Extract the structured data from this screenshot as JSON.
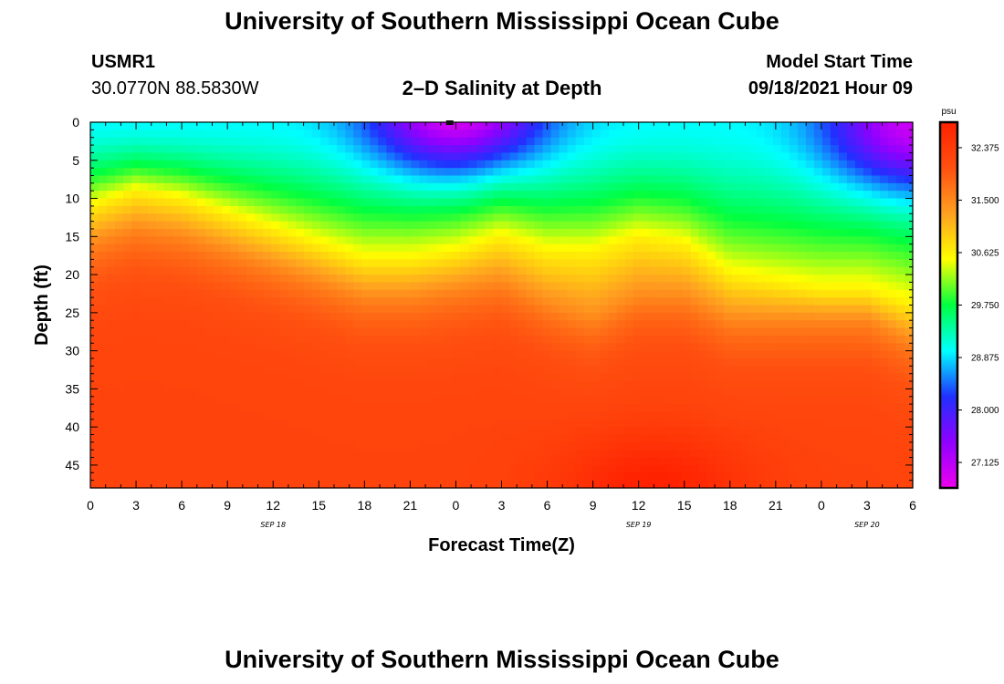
{
  "header": {
    "title": "University of Southern Mississippi Ocean Cube",
    "station_id": "USMR1",
    "station_coords": "30.0770N  88.5830W",
    "model_label": "Model Start Time",
    "model_time": "09/18/2021 Hour 09",
    "plot_title": "2–D Salinity at Depth"
  },
  "footer": {
    "title": "University of Southern Mississippi Ocean Cube"
  },
  "chart_data": {
    "type": "heatmap",
    "title": "2–D Salinity at Depth",
    "xlabel": "Forecast Time(Z)",
    "ylabel": "Depth (ft)",
    "x_range_hours": [
      0,
      54
    ],
    "y_range_ft": [
      0,
      48
    ],
    "x_ticks": [
      {
        "hour": 0,
        "label": "0"
      },
      {
        "hour": 3,
        "label": "3"
      },
      {
        "hour": 6,
        "label": "6"
      },
      {
        "hour": 9,
        "label": "9"
      },
      {
        "hour": 12,
        "label": "12"
      },
      {
        "hour": 15,
        "label": "15"
      },
      {
        "hour": 18,
        "label": "18"
      },
      {
        "hour": 21,
        "label": "21"
      },
      {
        "hour": 24,
        "label": "0"
      },
      {
        "hour": 27,
        "label": "3"
      },
      {
        "hour": 30,
        "label": "6"
      },
      {
        "hour": 33,
        "label": "9"
      },
      {
        "hour": 36,
        "label": "12"
      },
      {
        "hour": 39,
        "label": "15"
      },
      {
        "hour": 42,
        "label": "18"
      },
      {
        "hour": 45,
        "label": "21"
      },
      {
        "hour": 48,
        "label": "0"
      },
      {
        "hour": 51,
        "label": "3"
      },
      {
        "hour": 54,
        "label": "6"
      }
    ],
    "date_labels": [
      {
        "hour": 12,
        "label": "SEP 18"
      },
      {
        "hour": 36,
        "label": "SEP 19"
      },
      {
        "hour": 51,
        "label": "SEP 20"
      }
    ],
    "y_ticks": [
      0,
      5,
      10,
      15,
      20,
      25,
      30,
      35,
      40,
      45
    ],
    "surface_marker_hour": 23.6,
    "colorbar": {
      "unit": "psu",
      "range": [
        26.7,
        32.8
      ],
      "ticks": [
        "32.375",
        "31.500",
        "30.625",
        "29.750",
        "28.875",
        "28.000",
        "27.125"
      ],
      "colors": [
        "#ee00ee",
        "#9000ff",
        "#2030ff",
        "#00ffff",
        "#00ff40",
        "#ffff00",
        "#ffa020",
        "#ff5010",
        "#ff2000"
      ]
    },
    "isohaline_30_625_depth_ft": {
      "hours": [
        0,
        3,
        6,
        9,
        12,
        15,
        18,
        21,
        24,
        27,
        30,
        33,
        36,
        39,
        42,
        45,
        48,
        51,
        54
      ],
      "depths": [
        11,
        9,
        10,
        12,
        14,
        16,
        18,
        18,
        17,
        15,
        17,
        17,
        15,
        16,
        20,
        21,
        22,
        22,
        24
      ]
    },
    "isohaline_31_5_depth_ft": {
      "hours": [
        0,
        3,
        6,
        9,
        12,
        15,
        18,
        21,
        24,
        27,
        30,
        33,
        36,
        39,
        42,
        45,
        48,
        51,
        54
      ],
      "depths": [
        16,
        14,
        15,
        17,
        19,
        21,
        23,
        23,
        22,
        21,
        24,
        26,
        23,
        23,
        26,
        26,
        26,
        26,
        29
      ]
    },
    "fresh_cores": [
      {
        "hour": 24,
        "depth_ft": 0,
        "min_psu": 27.0
      },
      {
        "hour": 54,
        "depth_ft": 2,
        "min_psu": 26.9
      }
    ],
    "salty_core": {
      "hour": 37,
      "depth_ft": 48,
      "max_psu": 32.8
    }
  }
}
